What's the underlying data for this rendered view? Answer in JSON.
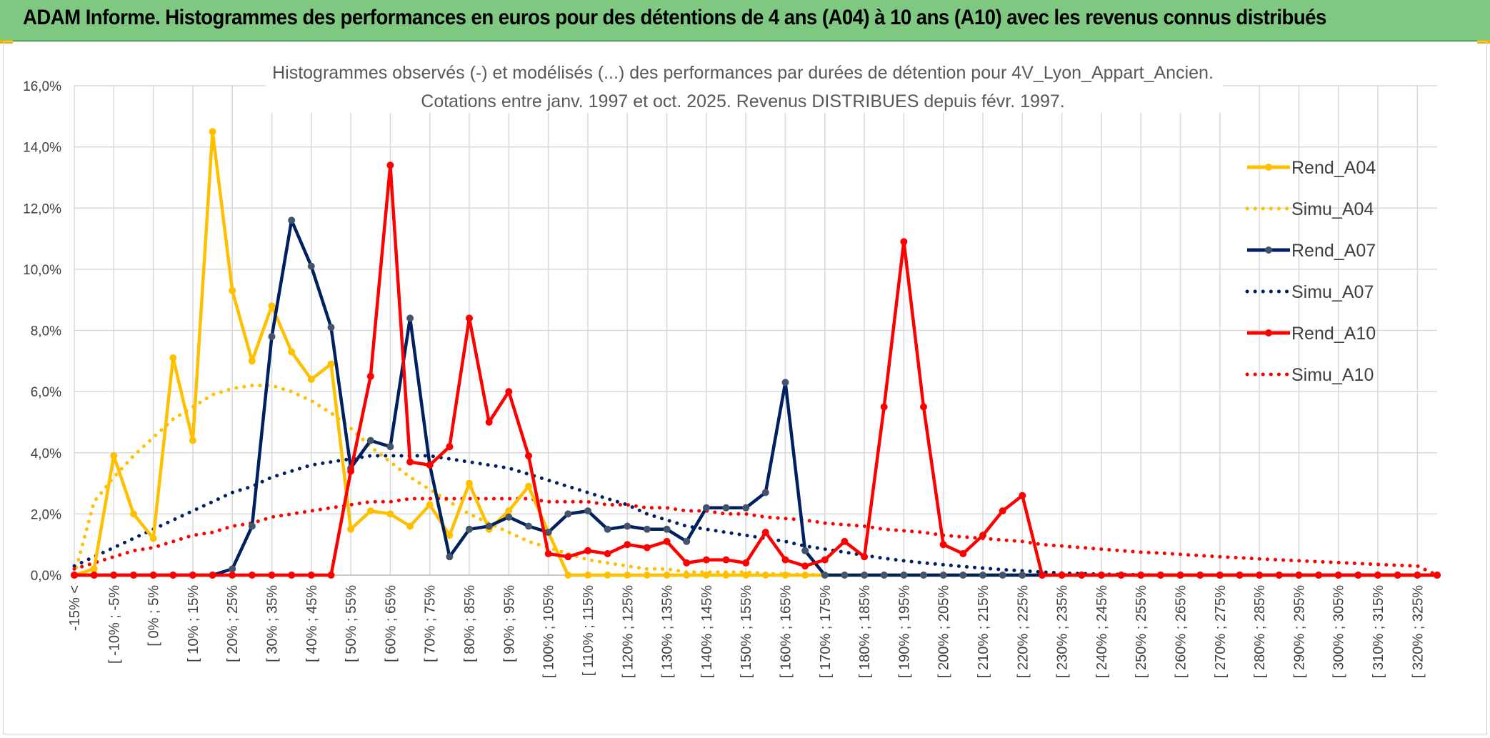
{
  "banner": {
    "title": "ADAM Informe. Histogrammes des performances en euros pour des détentions de 4 ans (A04) à 10 ans (A10) avec les revenus connus distribués"
  },
  "chart_data": {
    "type": "line",
    "title": "Histogrammes observés (-) et modélisés (...) des performances par durées de détention pour 4V_Lyon_Appart_Ancien.",
    "subtitle": "Cotations entre janv. 1997 et oct. 2025. Revenus DISTRIBUES depuis févr. 1997.",
    "xlabel": "",
    "ylabel": "",
    "ylim": [
      0,
      16
    ],
    "yticks": [
      "0,0%",
      "2,0%",
      "4,0%",
      "6,0%",
      "8,0%",
      "10,0%",
      "12,0%",
      "14,0%",
      "16,0%"
    ],
    "grid": true,
    "legend_position": "right",
    "x_tick_labels": [
      "-15% <",
      "[ -10% ; -5%",
      "[ 0% ; 5%",
      "[ 10% ; 15%",
      "[ 20% ; 25%",
      "[ 30% ; 35%",
      "[ 40% ; 45%",
      "[ 50% ; 55%",
      "[ 60% ; 65%",
      "[ 70% ; 75%",
      "[ 80% ; 85%",
      "[ 90% ; 95%",
      "[ 100% ; 105%",
      "[ 110% ; 115%",
      "[ 120% ; 125%",
      "[ 130% ; 135%",
      "[ 140% ; 145%",
      "[ 150% ; 155%",
      "[ 160% ; 165%",
      "[ 170% ; 175%",
      "[ 180% ; 185%",
      "[ 190% ; 195%",
      "[ 200% ; 205%",
      "[ 210% ; 215%",
      "[ 220% ; 225%",
      "[ 230% ; 235%",
      "[ 240% ; 245%",
      "[ 250% ; 255%",
      "[ 260% ; 265%",
      "[ 270% ; 275%",
      "[ 280% ; 285%",
      "[ 290% ; 295%",
      "[ 300% ; 305%",
      "[ 310% ; 315%",
      "[ 320% ; 325%"
    ],
    "series": [
      {
        "name": "Rend_A04",
        "color": "#ffc000",
        "style": "solid",
        "values": [
          0,
          0.2,
          3.9,
          2,
          1.2,
          7.1,
          4.4,
          14.5,
          9.3,
          7,
          8.8,
          7.3,
          6.4,
          6.9,
          1.5,
          2.1,
          2,
          1.6,
          2.3,
          1.3,
          3,
          1.5,
          2.1,
          2.9,
          1.4,
          0,
          0,
          0,
          0,
          0,
          0,
          0,
          0,
          0,
          0,
          0,
          0,
          0,
          0,
          0,
          0,
          0,
          0,
          0,
          0,
          0,
          0,
          0,
          0,
          0,
          0,
          0,
          0,
          0,
          0,
          0,
          0,
          0,
          0,
          0,
          0,
          0,
          0,
          0,
          0,
          0,
          0,
          0,
          0,
          0
        ]
      },
      {
        "name": "Simu_A04",
        "color": "#ffc000",
        "style": "dotted",
        "values": [
          0,
          2.4,
          3.2,
          3.9,
          4.5,
          5.1,
          5.5,
          5.9,
          6.1,
          6.2,
          6.2,
          6,
          5.7,
          5.3,
          4.8,
          4.2,
          3.7,
          3.2,
          2.8,
          2.4,
          2,
          1.7,
          1.4,
          1.1,
          0.9,
          0.7,
          0.5,
          0.4,
          0.3,
          0.2,
          0.2,
          0.1,
          0.1,
          0.1,
          0.1,
          0.05,
          0.03,
          0.02,
          0.01,
          0,
          0,
          0,
          0,
          0,
          0,
          0,
          0,
          0,
          0,
          0,
          0,
          0,
          0,
          0,
          0,
          0,
          0,
          0,
          0,
          0,
          0,
          0,
          0,
          0,
          0,
          0,
          0,
          0,
          0,
          0
        ]
      },
      {
        "name": "Rend_A07",
        "color": "#002060",
        "style": "solid",
        "values": [
          0,
          0,
          0,
          0,
          0,
          0,
          0,
          0,
          0.2,
          1.6,
          7.8,
          11.6,
          10.1,
          8.1,
          3.5,
          4.4,
          4.2,
          8.4,
          3.6,
          0.6,
          1.5,
          1.6,
          1.9,
          1.6,
          1.4,
          2,
          2.1,
          1.5,
          1.6,
          1.5,
          1.5,
          1.1,
          2.2,
          2.2,
          2.2,
          2.7,
          6.3,
          0.8,
          0,
          0,
          0,
          0,
          0,
          0,
          0,
          0,
          0,
          0,
          0,
          0,
          0,
          0,
          0,
          0,
          0,
          0,
          0,
          0,
          0,
          0,
          0,
          0,
          0,
          0,
          0,
          0,
          0,
          0,
          0,
          0
        ]
      },
      {
        "name": "Simu_A07",
        "color": "#002060",
        "style": "dotted",
        "values": [
          0.3,
          0.6,
          0.9,
          1.2,
          1.5,
          1.8,
          2.1,
          2.4,
          2.7,
          2.9,
          3.2,
          3.4,
          3.6,
          3.7,
          3.8,
          3.9,
          3.9,
          3.9,
          3.9,
          3.8,
          3.7,
          3.6,
          3.5,
          3.3,
          3.1,
          2.9,
          2.7,
          2.5,
          2.3,
          2,
          1.8,
          1.6,
          1.5,
          1.4,
          1.3,
          1.2,
          1.1,
          0.95,
          0.85,
          0.75,
          0.65,
          0.55,
          0.47,
          0.4,
          0.34,
          0.28,
          0.23,
          0.18,
          0.14,
          0.1,
          0.07,
          0.05,
          0.03,
          0.02,
          0.01,
          0,
          0,
          0,
          0,
          0,
          0,
          0,
          0,
          0,
          0,
          0,
          0,
          0,
          0,
          0
        ]
      },
      {
        "name": "Rend_A10",
        "color": "#ff0000",
        "style": "solid",
        "values": [
          0,
          0,
          0,
          0,
          0,
          0,
          0,
          0,
          0,
          0,
          0,
          0,
          0,
          0,
          3.4,
          6.5,
          13.4,
          3.7,
          3.6,
          4.2,
          8.4,
          5,
          6,
          3.9,
          0.7,
          0.6,
          0.8,
          0.7,
          1,
          0.9,
          1.1,
          0.4,
          0.5,
          0.5,
          0.4,
          1.4,
          0.5,
          0.3,
          0.5,
          1.1,
          0.6,
          5.5,
          10.9,
          5.5,
          1,
          0.7,
          1.3,
          2.1,
          2.6,
          0,
          0,
          0,
          0,
          0,
          0,
          0,
          0,
          0,
          0,
          0,
          0,
          0,
          0,
          0,
          0,
          0,
          0,
          0,
          0,
          0
        ]
      },
      {
        "name": "Simu_A10",
        "color": "#ff0000",
        "style": "dotted",
        "values": [
          0.2,
          0.4,
          0.6,
          0.8,
          0.9,
          1.1,
          1.3,
          1.4,
          1.6,
          1.7,
          1.9,
          2,
          2.1,
          2.2,
          2.3,
          2.4,
          2.4,
          2.5,
          2.5,
          2.5,
          2.5,
          2.5,
          2.5,
          2.5,
          2.4,
          2.4,
          2.4,
          2.3,
          2.3,
          2.2,
          2.2,
          2.1,
          2.1,
          2,
          2,
          1.9,
          1.85,
          1.8,
          1.7,
          1.65,
          1.6,
          1.5,
          1.45,
          1.4,
          1.3,
          1.25,
          1.2,
          1.15,
          1.1,
          1,
          0.95,
          0.9,
          0.85,
          0.8,
          0.75,
          0.72,
          0.68,
          0.64,
          0.6,
          0.57,
          0.53,
          0.5,
          0.47,
          0.44,
          0.41,
          0.38,
          0.35,
          0.32,
          0.3,
          0
        ]
      }
    ]
  }
}
